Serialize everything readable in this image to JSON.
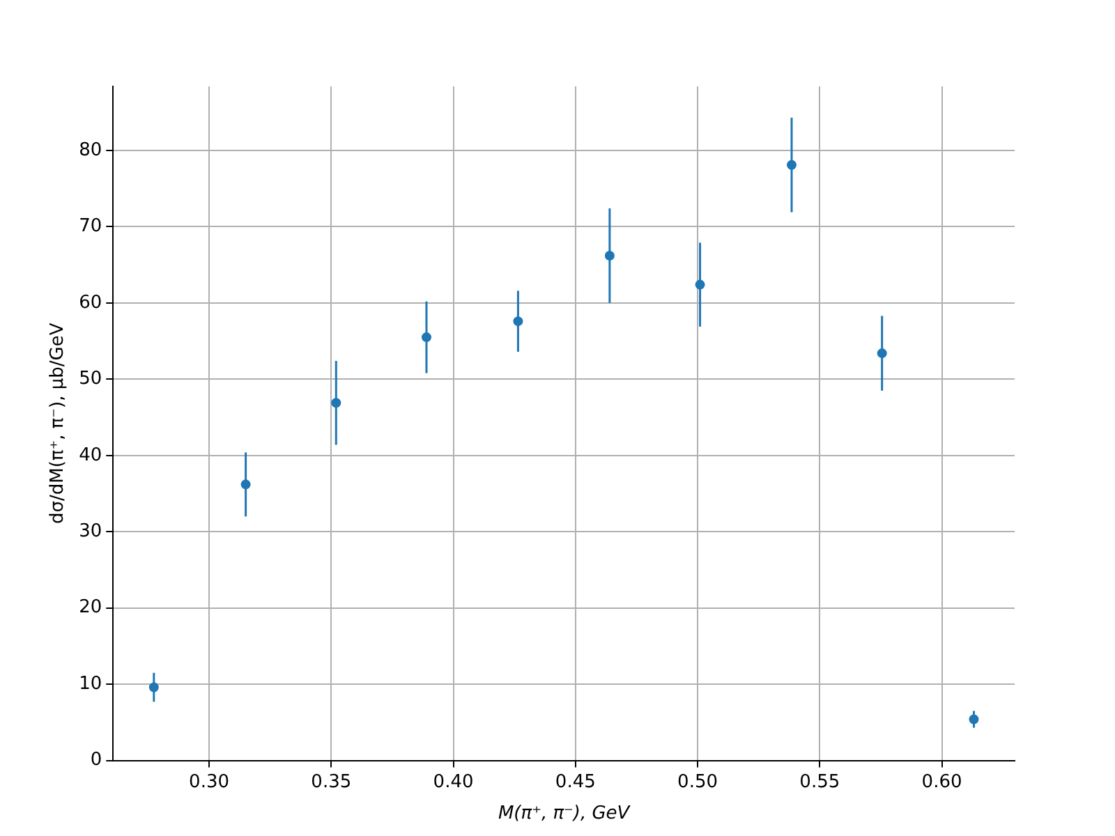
{
  "chart_data": {
    "type": "scatter",
    "xlabel": "M(π⁺, π⁻), GeV",
    "ylabel": "dσ/dM(π⁺, π⁻), μb/GeV",
    "x": [
      0.2774,
      0.315,
      0.352,
      0.389,
      0.4265,
      0.464,
      0.501,
      0.5385,
      0.5755,
      0.6131
    ],
    "series": [
      {
        "color": "#1f77b4",
        "values": [
          9.6,
          36.2,
          46.9,
          55.5,
          57.6,
          66.2,
          62.4,
          78.1,
          53.4,
          5.4
        ],
        "errors": [
          1.9,
          4.2,
          5.5,
          4.7,
          4.0,
          6.2,
          5.5,
          6.2,
          4.9,
          1.1
        ]
      }
    ],
    "xlim": [
      0.2607,
      0.6298
    ],
    "ylim": [
      0,
      88.4
    ],
    "xticks": [
      {
        "value": 0.3,
        "label": "0.30"
      },
      {
        "value": 0.35,
        "label": "0.35"
      },
      {
        "value": 0.4,
        "label": "0.40"
      },
      {
        "value": 0.45,
        "label": "0.45"
      },
      {
        "value": 0.5,
        "label": "0.50"
      },
      {
        "value": 0.55,
        "label": "0.55"
      },
      {
        "value": 0.6,
        "label": "0.60"
      }
    ],
    "yticks": [
      0,
      10,
      20,
      30,
      40,
      50,
      60,
      70,
      80
    ],
    "grid": true,
    "legend": false,
    "marker": "circle"
  }
}
